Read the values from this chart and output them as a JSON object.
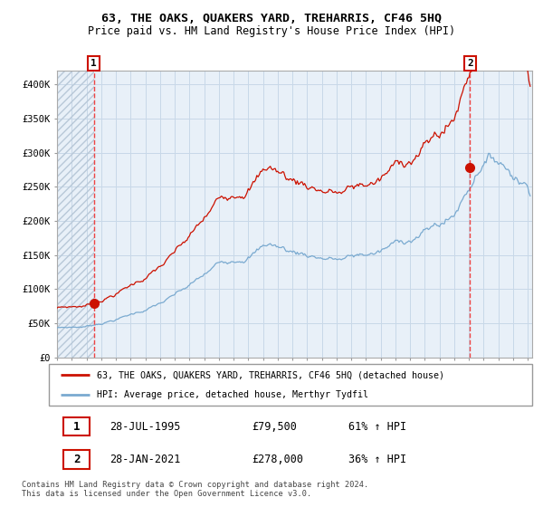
{
  "title": "63, THE OAKS, QUAKERS YARD, TREHARRIS, CF46 5HQ",
  "subtitle": "Price paid vs. HM Land Registry's House Price Index (HPI)",
  "sale1_price": 79500,
  "sale2_price": 278000,
  "sale1_t": 1995.5,
  "sale2_t": 2021.0833,
  "legend_line1": "63, THE OAKS, QUAKERS YARD, TREHARRIS, CF46 5HQ (detached house)",
  "legend_line2": "HPI: Average price, detached house, Merthyr Tydfil",
  "ann1_date": "28-JUL-1995",
  "ann1_price": "£79,500",
  "ann1_hpi": "61% ↑ HPI",
  "ann2_date": "28-JAN-2021",
  "ann2_price": "£278,000",
  "ann2_hpi": "36% ↑ HPI",
  "footer": "Contains HM Land Registry data © Crown copyright and database right 2024.\nThis data is licensed under the Open Government Licence v3.0.",
  "hpi_color": "#7aaad0",
  "price_color": "#cc1100",
  "marker_color": "#cc1100",
  "dashed_color": "#ee4444",
  "grid_color": "#c8d8e8",
  "plot_bg": "#e8f0f8",
  "hatch_color": "#b8c8d8",
  "ylim_max": 420000,
  "yticks": [
    0,
    50000,
    100000,
    150000,
    200000,
    250000,
    300000,
    350000,
    400000
  ],
  "ytick_labels": [
    "£0",
    "£50K",
    "£100K",
    "£150K",
    "£200K",
    "£250K",
    "£300K",
    "£350K",
    "£400K"
  ],
  "xstart": 1993,
  "xend": 2025
}
